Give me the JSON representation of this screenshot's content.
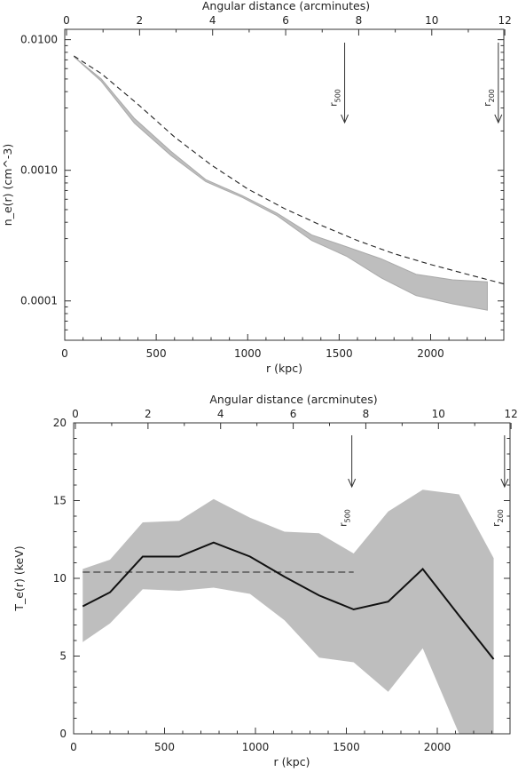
{
  "chart_data": [
    {
      "type": "line",
      "title": "",
      "xlabel": "r (kpc)",
      "ylabel": "n_e(r) (cm^-3)",
      "top_axis_label": "Angular distance (arcminutes)",
      "xlim": [
        0,
        2400
      ],
      "ylim": [
        5e-05,
        0.012
      ],
      "yscale": "log",
      "x_ticks": [
        0,
        500,
        1000,
        1500,
        2000
      ],
      "x_tick_labels": [
        "0",
        "500",
        "1000",
        "1500",
        "2000"
      ],
      "y_ticks": [
        0.01,
        0.001,
        0.0001
      ],
      "y_tick_labels": [
        "0.0100",
        "0.0010",
        "0.0001"
      ],
      "top_ticks": [
        0,
        2,
        4,
        6,
        8,
        10,
        12
      ],
      "top_tick_labels": [
        "0",
        "2",
        "4",
        "6",
        "8",
        "10",
        "12"
      ],
      "band": {
        "x": [
          50,
          200,
          380,
          580,
          770,
          970,
          1160,
          1350,
          1540,
          1730,
          1920,
          2120,
          2310
        ],
        "upper": [
          0.0074,
          0.005,
          0.0025,
          0.0014,
          0.00085,
          0.00064,
          0.00047,
          0.00032,
          0.00026,
          0.00021,
          0.00016,
          0.000145,
          0.00014
        ],
        "lower": [
          0.0074,
          0.0048,
          0.0023,
          0.0013,
          0.00082,
          0.00062,
          0.00045,
          0.00029,
          0.00022,
          0.00015,
          0.00011,
          9.5e-05,
          8.5e-05
        ]
      },
      "model": {
        "x": [
          50,
          200,
          400,
          600,
          800,
          1000,
          1200,
          1400,
          1600,
          1800,
          2000,
          2200,
          2400
        ],
        "values": [
          0.0075,
          0.0055,
          0.0032,
          0.0018,
          0.0011,
          0.00072,
          0.00051,
          0.00038,
          0.00029,
          0.00023,
          0.00019,
          0.00016,
          0.000135
        ]
      },
      "arrows": [
        {
          "label": "r",
          "sub": "500",
          "x": 1530
        },
        {
          "label": "r",
          "sub": "200",
          "x": 2370
        }
      ]
    },
    {
      "type": "line",
      "title": "",
      "xlabel": "r (kpc)",
      "ylabel": "T_e(r) (keV)",
      "top_axis_label": "Angular distance (arcminutes)",
      "xlim": [
        0,
        2400
      ],
      "ylim": [
        0,
        20
      ],
      "x_ticks": [
        0,
        500,
        1000,
        1500,
        2000
      ],
      "x_tick_labels": [
        "0",
        "500",
        "1000",
        "1500",
        "2000"
      ],
      "y_ticks": [
        0,
        5,
        10,
        15,
        20
      ],
      "y_tick_labels": [
        "0",
        "5",
        "10",
        "15",
        "20"
      ],
      "top_ticks": [
        0,
        2,
        4,
        6,
        8,
        10,
        12
      ],
      "top_tick_labels": [
        "0",
        "2",
        "4",
        "6",
        "8",
        "10",
        "12"
      ],
      "band": {
        "x": [
          50,
          200,
          380,
          580,
          770,
          970,
          1160,
          1350,
          1540,
          1730,
          1920,
          2120,
          2310
        ],
        "upper": [
          10.6,
          11.2,
          13.6,
          13.7,
          15.1,
          13.9,
          13.0,
          12.9,
          11.6,
          14.3,
          15.7,
          15.4,
          11.3
        ],
        "lower": [
          5.9,
          7.1,
          9.3,
          9.2,
          9.4,
          9.0,
          7.3,
          4.9,
          4.6,
          2.7,
          5.5,
          0.0,
          0.0
        ]
      },
      "profile": {
        "x": [
          50,
          200,
          380,
          580,
          770,
          970,
          1160,
          1350,
          1540,
          1730,
          1920,
          2120,
          2310
        ],
        "values": [
          8.2,
          9.1,
          11.4,
          11.4,
          12.3,
          11.4,
          10.1,
          8.9,
          8.0,
          8.5,
          10.6,
          7.6,
          4.8
        ]
      },
      "mean_line": {
        "x": [
          50,
          1540
        ],
        "value": 10.4
      },
      "arrows": [
        {
          "label": "r",
          "sub": "500",
          "x": 1530
        },
        {
          "label": "r",
          "sub": "200",
          "x": 2370
        }
      ]
    }
  ],
  "colors": {
    "band": "#bebebe",
    "model_line": "#222222",
    "profile_line": "#111111",
    "frame": "#333333",
    "ne_band_edge": "#aaaaaa"
  }
}
